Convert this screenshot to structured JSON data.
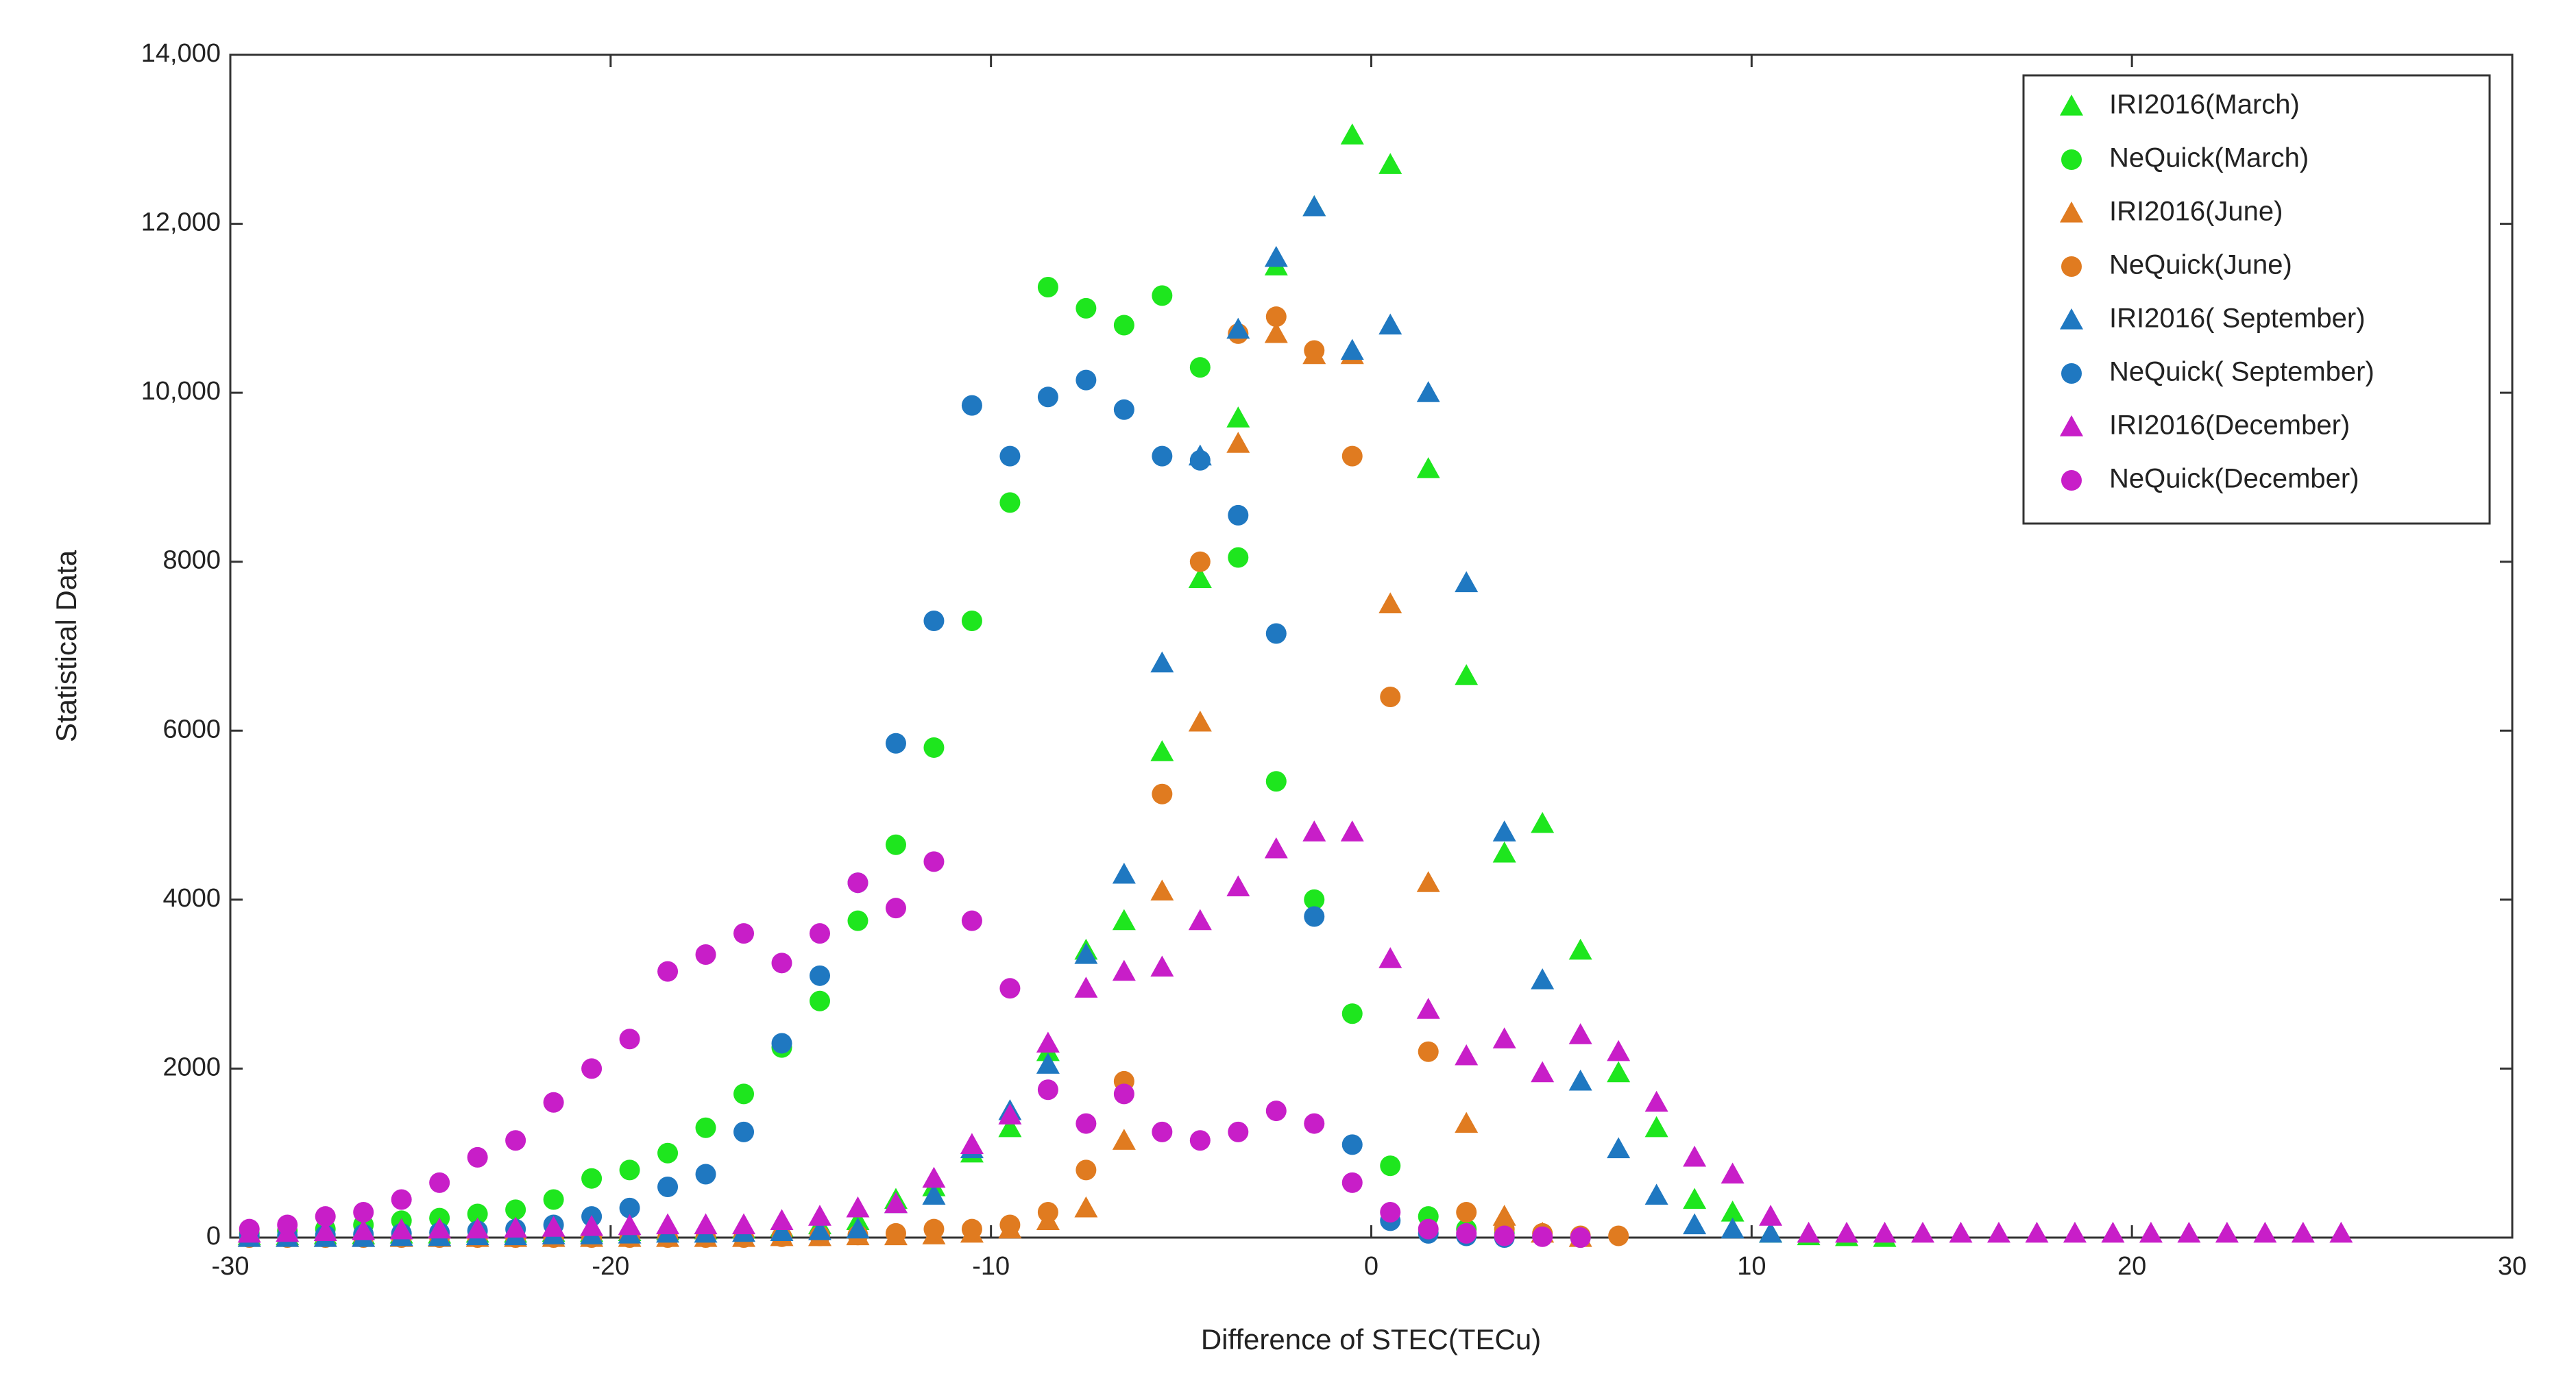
{
  "chart_data": {
    "type": "scatter",
    "xlabel": "Difference of STEC(TECu)",
    "ylabel": "Statistical Data",
    "x": [
      -29.5,
      -28.5,
      -27.5,
      -26.5,
      -25.5,
      -24.5,
      -23.5,
      -22.5,
      -21.5,
      -20.5,
      -19.5,
      -18.5,
      -17.5,
      -16.5,
      -15.5,
      -14.5,
      -13.5,
      -12.5,
      -11.5,
      -10.5,
      -9.5,
      -8.5,
      -7.5,
      -6.5,
      -5.5,
      -4.5,
      -3.5,
      -2.5,
      -1.5,
      -0.5,
      0.5,
      1.5,
      2.5,
      3.5,
      4.5,
      5.5,
      6.5,
      7.5,
      8.5,
      9.5,
      10.5,
      11.5,
      12.5,
      13.5,
      14.5,
      15.5,
      16.5,
      17.5,
      18.5,
      19.5,
      20.5,
      21.5,
      22.5,
      23.5,
      24.5,
      25.5
    ],
    "xlim": [
      -30,
      30
    ],
    "xticks": [
      -30,
      -20,
      -10,
      0,
      10,
      20,
      30
    ],
    "ylim": [
      0,
      14000
    ],
    "yticks": [
      0,
      2000,
      4000,
      6000,
      8000,
      {
        "value": 10000,
        "label": "10,000"
      },
      {
        "value": 12000,
        "label": "12,000"
      },
      {
        "value": 14000,
        "label": "14,000"
      }
    ],
    "legend": "upper right",
    "series": [
      {
        "name": "IRI2016(March)",
        "color": "#1ee61e",
        "marker": "triangle",
        "values": [
          20,
          20,
          30,
          30,
          40,
          40,
          50,
          50,
          60,
          60,
          70,
          80,
          90,
          100,
          120,
          150,
          200,
          450,
          600,
          1000,
          1300,
          2200,
          3400,
          3750,
          5750,
          7800,
          9700,
          11500,
          12200,
          13050,
          12700,
          9100,
          6650,
          4550,
          4900,
          3400,
          1950,
          1300,
          450,
          300,
          50,
          20,
          10,
          0,
          null,
          null,
          null,
          null,
          null,
          null,
          null,
          null,
          null,
          null,
          null,
          null
        ]
      },
      {
        "name": "NeQuick(March)",
        "color": "#1ee61e",
        "marker": "circle",
        "values": [
          50,
          80,
          100,
          150,
          200,
          230,
          280,
          330,
          450,
          700,
          800,
          1000,
          1300,
          1700,
          2250,
          2800,
          3750,
          4650,
          5800,
          7300,
          8700,
          11250,
          11000,
          10800,
          11150,
          10300,
          8050,
          5400,
          4000,
          2650,
          850,
          250,
          100,
          50,
          20,
          0,
          null,
          null,
          null,
          null,
          null,
          null,
          null,
          null,
          null,
          null,
          null,
          null,
          null,
          null,
          null,
          null,
          null,
          null,
          null,
          null
        ]
      },
      {
        "name": "IRI2016(June)",
        "color": "#e07b20",
        "marker": "triangle",
        "values": [
          0,
          0,
          0,
          0,
          0,
          0,
          0,
          0,
          0,
          0,
          0,
          0,
          0,
          0,
          10,
          10,
          20,
          20,
          30,
          50,
          100,
          200,
          350,
          1150,
          4100,
          6100,
          9400,
          10700,
          10450,
          10450,
          7500,
          4200,
          1350,
          250,
          50,
          0,
          null,
          null,
          null,
          null,
          null,
          null,
          null,
          null,
          null,
          null,
          null,
          null,
          null,
          null,
          null,
          null,
          null,
          null,
          null,
          null
        ]
      },
      {
        "name": "NeQuick(June)",
        "color": "#e07b20",
        "marker": "circle",
        "values": [
          0,
          0,
          0,
          0,
          0,
          0,
          0,
          0,
          0,
          0,
          0,
          0,
          0,
          0,
          10,
          20,
          30,
          50,
          100,
          100,
          150,
          300,
          800,
          1850,
          5250,
          8000,
          10700,
          10900,
          10500,
          9250,
          6400,
          2200,
          300,
          100,
          50,
          20,
          20,
          null,
          null,
          null,
          null,
          null,
          null,
          null,
          null,
          null,
          null,
          null,
          null,
          null,
          null,
          null,
          null,
          null,
          null,
          null
        ]
      },
      {
        "name": "IRI2016( September)",
        "color": "#1f78c1",
        "marker": "triangle",
        "values": [
          0,
          0,
          0,
          0,
          10,
          10,
          20,
          20,
          30,
          30,
          40,
          50,
          50,
          60,
          70,
          80,
          100,
          400,
          500,
          1050,
          1500,
          2050,
          3350,
          4300,
          6800,
          9250,
          10750,
          11600,
          12200,
          10500,
          10800,
          10000,
          7750,
          4800,
          3050,
          1850,
          1050,
          500,
          150,
          100,
          50,
          null,
          null,
          null,
          null,
          null,
          null,
          null,
          null,
          null,
          null,
          null,
          null,
          null,
          null,
          null
        ]
      },
      {
        "name": "NeQuick( September)",
        "color": "#1f78c1",
        "marker": "circle",
        "values": [
          20,
          20,
          30,
          40,
          50,
          60,
          80,
          100,
          150,
          250,
          350,
          600,
          750,
          1250,
          2300,
          3100,
          4200,
          5850,
          7300,
          9850,
          9250,
          9950,
          10150,
          9800,
          9250,
          9200,
          8550,
          7150,
          3800,
          1100,
          200,
          50,
          20,
          0,
          null,
          null,
          null,
          null,
          null,
          null,
          null,
          null,
          null,
          null,
          null,
          null,
          null,
          null,
          null,
          null,
          null,
          null,
          null,
          null,
          null,
          null
        ]
      },
      {
        "name": "IRI2016(December)",
        "color": "#c81ec8",
        "marker": "triangle",
        "values": [
          50,
          60,
          70,
          80,
          90,
          100,
          100,
          110,
          120,
          130,
          140,
          150,
          150,
          150,
          200,
          250,
          350,
          400,
          700,
          1100,
          1450,
          2300,
          2950,
          3150,
          3200,
          3750,
          4150,
          4600,
          4800,
          4800,
          3300,
          2700,
          2150,
          2350,
          1950,
          2400,
          2200,
          1600,
          950,
          750,
          250,
          50,
          50,
          50,
          50,
          50,
          50,
          50,
          50,
          50,
          50,
          50,
          50,
          50,
          50,
          50
        ]
      },
      {
        "name": "NeQuick(December)",
        "color": "#c81ec8",
        "marker": "circle",
        "values": [
          100,
          150,
          250,
          300,
          450,
          650,
          950,
          1150,
          1600,
          2000,
          2350,
          3150,
          3350,
          3600,
          3250,
          3600,
          4200,
          3900,
          4450,
          3750,
          2950,
          1750,
          1350,
          1700,
          1250,
          1150,
          1250,
          1500,
          1350,
          650,
          300,
          100,
          50,
          20,
          10,
          0,
          null,
          null,
          null,
          null,
          null,
          null,
          null,
          null,
          null,
          null,
          null,
          null,
          null,
          null,
          null,
          null,
          null,
          null,
          null,
          null
        ]
      }
    ]
  }
}
